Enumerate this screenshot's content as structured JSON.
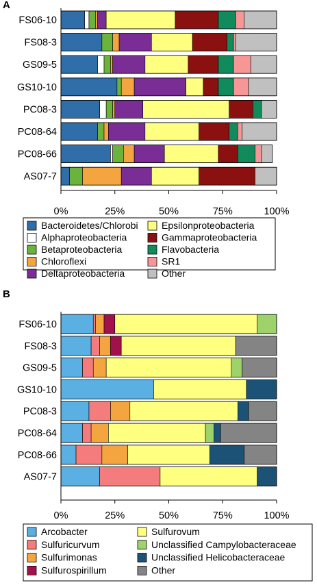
{
  "chart_data": [
    {
      "panel": "A",
      "type": "bar",
      "orientation": "horizontal",
      "stacked": true,
      "categories": [
        "FS06-10",
        "FS08-3",
        "GS09-5",
        "GS10-10",
        "PC08-3",
        "PC08-64",
        "PC08-66",
        "AS07-7"
      ],
      "xlim": [
        0,
        100
      ],
      "xticks": [
        "0%",
        "25%",
        "50%",
        "75%",
        "100%"
      ],
      "series": [
        {
          "name": "Bacteroidetes/Chlorobi",
          "color": "#2f6ea8",
          "values": [
            11,
            19,
            17,
            26,
            18,
            17,
            23,
            4
          ]
        },
        {
          "name": "Alphaproteobacteria",
          "color": "#ffffff",
          "values": [
            2,
            0,
            3,
            0,
            3,
            0,
            1,
            0
          ]
        },
        {
          "name": "Betaproteobacteria",
          "color": "#6cb33e",
          "values": [
            3,
            5,
            3,
            2,
            3,
            3,
            5,
            6
          ]
        },
        {
          "name": "Chloroflexi",
          "color": "#f5a540",
          "values": [
            1,
            3,
            1,
            6,
            1,
            2,
            5,
            18
          ]
        },
        {
          "name": "Deltaproteobacteria",
          "color": "#7b2d96",
          "values": [
            4,
            15,
            15,
            24,
            13,
            17,
            14,
            14
          ]
        },
        {
          "name": "Epsilonproteobacteria",
          "color": "#ffff80",
          "values": [
            32,
            19,
            20,
            8,
            40,
            25,
            25,
            22
          ]
        },
        {
          "name": "Gammaproteobacteria",
          "color": "#8b1111",
          "values": [
            20,
            16,
            14,
            7,
            11,
            14,
            9,
            26
          ]
        },
        {
          "name": "Flavobacteria",
          "color": "#118a5c",
          "values": [
            8,
            3,
            7,
            7,
            4,
            4,
            8,
            0
          ]
        },
        {
          "name": "SR1",
          "color": "#f79696",
          "values": [
            4,
            1,
            8,
            7,
            0,
            2,
            3,
            0
          ]
        },
        {
          "name": "Other",
          "color": "#c0c0c0",
          "values": [
            15,
            19,
            12,
            13,
            7,
            16,
            5,
            10
          ]
        }
      ]
    },
    {
      "panel": "B",
      "type": "bar",
      "orientation": "horizontal",
      "stacked": true,
      "categories": [
        "FS06-10",
        "FS08-3",
        "GS09-5",
        "GS10-10",
        "PC08-3",
        "PC08-64",
        "PC08-66",
        "AS07-7"
      ],
      "xlim": [
        0,
        100
      ],
      "xticks": [
        "0%",
        "25%",
        "50%",
        "75%",
        "100%"
      ],
      "series": [
        {
          "name": "Arcobacter",
          "color": "#5aafe3",
          "values": [
            15,
            14,
            10,
            43,
            13,
            10,
            7,
            18
          ]
        },
        {
          "name": "Sulfuricurvum",
          "color": "#f47c7c",
          "values": [
            1,
            4,
            5,
            0,
            10,
            4,
            12,
            28
          ]
        },
        {
          "name": "Sulfurimonas",
          "color": "#f5a540",
          "values": [
            4,
            5,
            6,
            0,
            9,
            8,
            12,
            0
          ]
        },
        {
          "name": "Sulfurospirillum",
          "color": "#a3114a",
          "values": [
            5,
            5,
            0,
            0,
            0,
            0,
            0,
            0
          ]
        },
        {
          "name": "Sulfurovum",
          "color": "#ffff80",
          "values": [
            66,
            53,
            58,
            43,
            50,
            45,
            38,
            45
          ]
        },
        {
          "name": "Unclassified Campylobacteraceae",
          "color": "#9ed36b",
          "values": [
            9,
            0,
            5,
            0,
            0,
            4,
            0,
            0
          ]
        },
        {
          "name": "Unclassified Helicobacteraceae",
          "color": "#1b5275",
          "values": [
            0,
            0,
            0,
            14,
            5,
            3,
            16,
            9
          ]
        },
        {
          "name": "Other",
          "color": "#848484",
          "values": [
            0,
            19,
            16,
            0,
            13,
            26,
            15,
            0
          ]
        }
      ]
    }
  ]
}
